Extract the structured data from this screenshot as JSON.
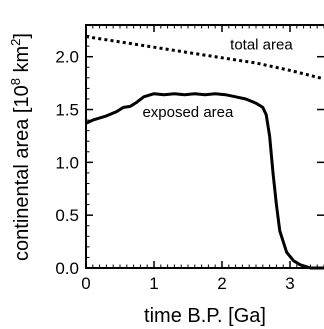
{
  "chart_data": {
    "type": "line",
    "xlabel": "time B.P. [Ga]",
    "ylabel": "continental area [10",
    "ylabel_sup": "8",
    "ylabel_unit": " km",
    "ylabel_unit_sup": "2",
    "ylabel_close": "]",
    "xlim": [
      0,
      3.5
    ],
    "ylim": [
      0,
      2.3
    ],
    "x_ticks": [
      {
        "value": 0,
        "label": "0"
      },
      {
        "value": 1,
        "label": "1"
      },
      {
        "value": 2,
        "label": "2"
      },
      {
        "value": 3,
        "label": "3"
      }
    ],
    "y_ticks": [
      {
        "value": 0.0,
        "label": "0.0"
      },
      {
        "value": 0.5,
        "label": "0.5"
      },
      {
        "value": 1.0,
        "label": "1.0"
      },
      {
        "value": 1.5,
        "label": "1.5"
      },
      {
        "value": 2.0,
        "label": "2.0"
      }
    ],
    "grid": false,
    "series": [
      {
        "name": "total area",
        "style": "dotted",
        "color": "#000000",
        "x": [
          0,
          0.5,
          1.0,
          1.5,
          2.0,
          2.5,
          3.0,
          3.5
        ],
        "y": [
          2.19,
          2.14,
          2.09,
          2.04,
          1.99,
          1.94,
          1.87,
          1.79
        ]
      },
      {
        "name": "exposed area",
        "style": "solid",
        "color": "#000000",
        "x": [
          0,
          0.1,
          0.3,
          0.45,
          0.55,
          0.65,
          0.75,
          0.85,
          1.0,
          1.15,
          1.3,
          1.45,
          1.6,
          1.75,
          1.9,
          2.05,
          2.2,
          2.35,
          2.5,
          2.6,
          2.65,
          2.7,
          2.75,
          2.8,
          2.85,
          2.9,
          2.95,
          3.05,
          3.15,
          3.25,
          3.3,
          3.35,
          3.4,
          3.5
        ],
        "y": [
          1.37,
          1.4,
          1.44,
          1.48,
          1.52,
          1.53,
          1.57,
          1.62,
          1.65,
          1.64,
          1.65,
          1.64,
          1.65,
          1.64,
          1.65,
          1.64,
          1.62,
          1.6,
          1.56,
          1.52,
          1.45,
          1.25,
          0.9,
          0.6,
          0.35,
          0.25,
          0.15,
          0.07,
          0.03,
          0.01,
          0.0,
          0.0,
          0.0,
          0.0
        ]
      }
    ],
    "annotations": [
      {
        "text": "total area",
        "series": 0
      },
      {
        "text": "exposed area",
        "series": 1
      }
    ]
  }
}
